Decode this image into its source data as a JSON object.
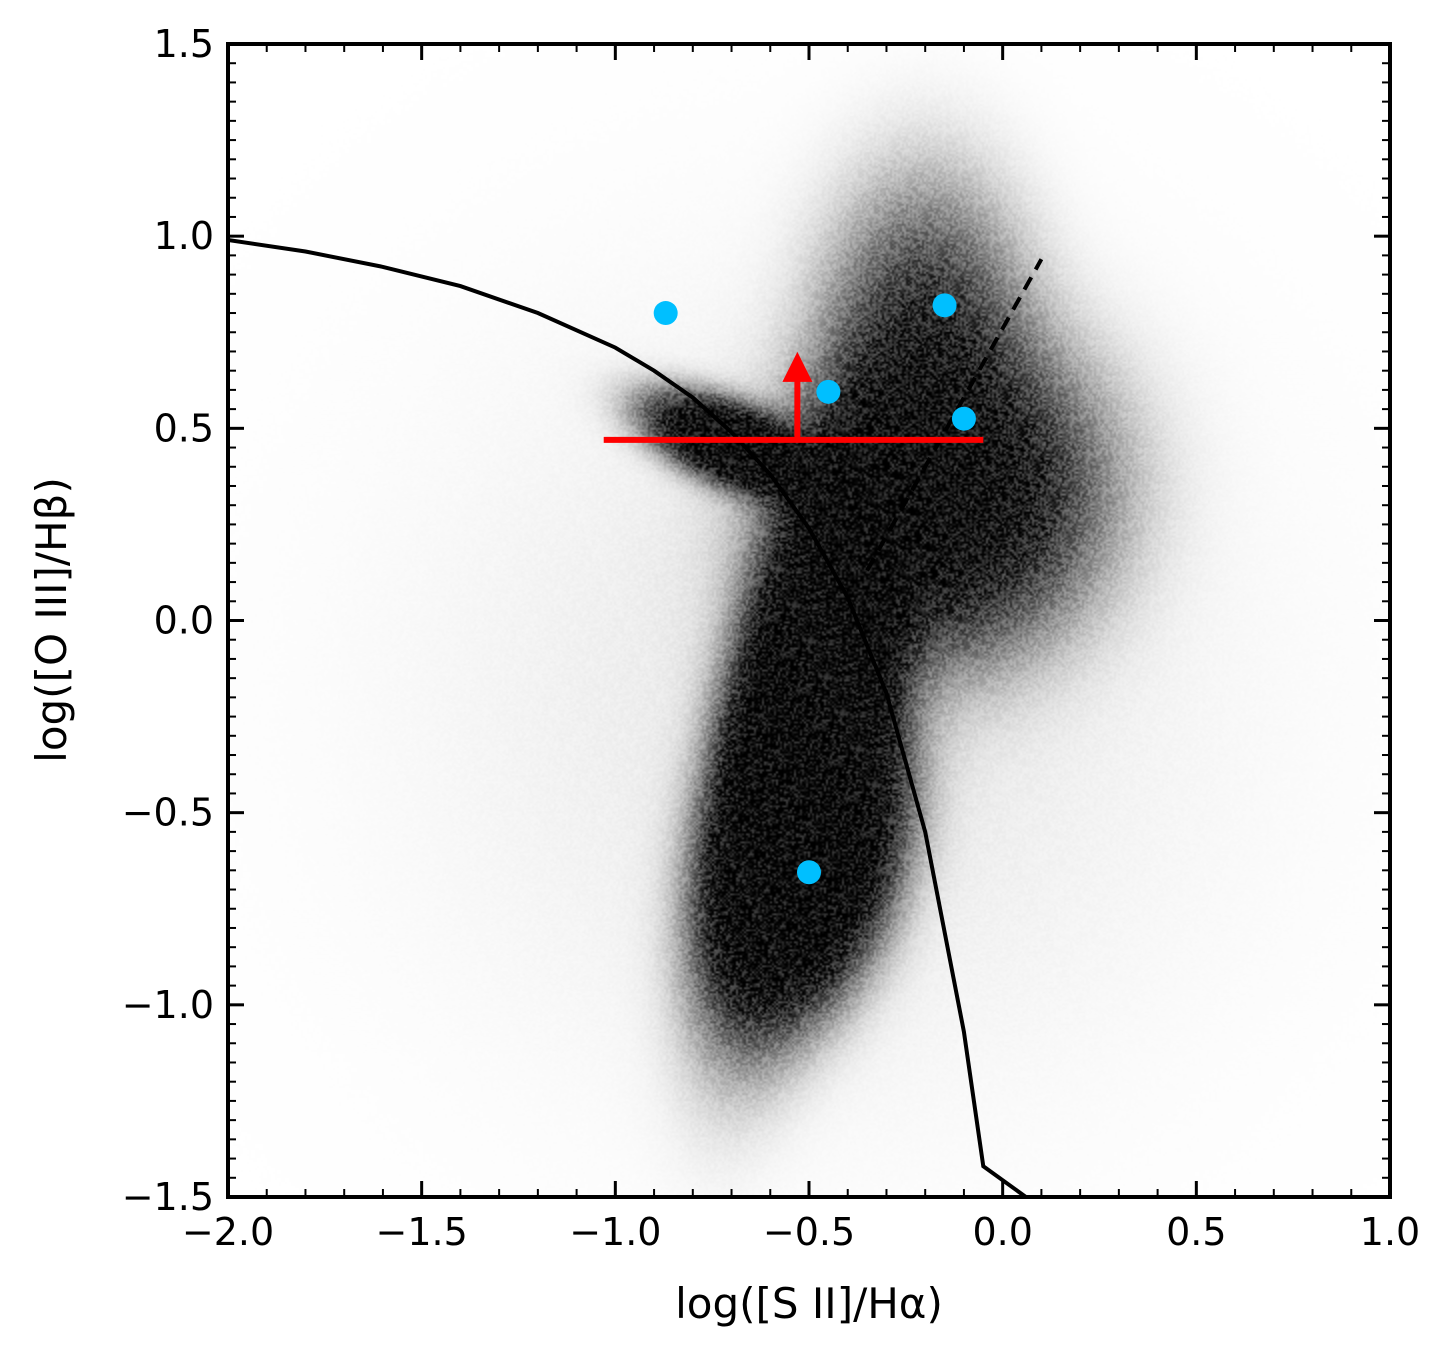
{
  "chart_data": {
    "type": "scatter",
    "xlabel": "log([S II]/Hα)",
    "ylabel": "log([O III]/Hβ)",
    "xlim": [
      -2.0,
      1.0
    ],
    "ylim": [
      -1.5,
      1.5
    ],
    "x_ticks": [
      "−2.0",
      "−1.5",
      "−1.0",
      "−0.5",
      "0.0",
      "0.5",
      "1.0"
    ],
    "y_ticks": [
      "−1.5",
      "−1.0",
      "−0.5",
      "0.0",
      "0.5",
      "1.0",
      "1.5"
    ],
    "grid": false,
    "legend": "none",
    "background_density": {
      "description_free": true,
      "color": "#000000",
      "components": [
        {
          "cx": -0.5,
          "cy": -0.25,
          "sx": 0.12,
          "sy": 0.35,
          "rho": 0.55,
          "weight": 0.45
        },
        {
          "cx": -0.5,
          "cy": -0.6,
          "sx": 0.12,
          "sy": 0.2,
          "rho": 0.3,
          "weight": 0.2
        },
        {
          "cx": -0.15,
          "cy": 0.3,
          "sx": 0.22,
          "sy": 0.22,
          "rho": 0.1,
          "weight": 0.18
        },
        {
          "cx": -0.2,
          "cy": 0.7,
          "sx": 0.15,
          "sy": 0.25,
          "rho": 0.0,
          "weight": 0.07
        },
        {
          "cx": -0.68,
          "cy": 0.45,
          "sx": 0.12,
          "sy": 0.07,
          "rho": -0.6,
          "weight": 0.05
        },
        {
          "cx": -0.45,
          "cy": -0.2,
          "sx": 0.7,
          "sy": 0.7,
          "rho": 0.0,
          "weight": 0.05
        }
      ]
    },
    "series": [
      {
        "kind": "curve",
        "style": "solid",
        "color": "#000000",
        "points": [
          [
            -2.0,
            0.99
          ],
          [
            -1.8,
            0.96
          ],
          [
            -1.6,
            0.92
          ],
          [
            -1.4,
            0.87
          ],
          [
            -1.2,
            0.8
          ],
          [
            -1.0,
            0.71
          ],
          [
            -0.9,
            0.65
          ],
          [
            -0.8,
            0.58
          ],
          [
            -0.7,
            0.49
          ],
          [
            -0.6,
            0.38
          ],
          [
            -0.5,
            0.24
          ],
          [
            -0.4,
            0.06
          ],
          [
            -0.3,
            -0.19
          ],
          [
            -0.2,
            -0.55
          ],
          [
            -0.1,
            -1.07
          ],
          [
            -0.05,
            -1.42
          ],
          [
            0.06,
            -1.5
          ]
        ]
      },
      {
        "kind": "line",
        "style": "dashed",
        "color": "#000000",
        "points": [
          [
            -0.35,
            0.13
          ],
          [
            0.1,
            0.94
          ]
        ]
      },
      {
        "kind": "points",
        "color": "#00bfff",
        "points": [
          [
            -0.87,
            0.8
          ],
          [
            -0.45,
            0.595
          ],
          [
            -0.15,
            0.82
          ],
          [
            -0.1,
            0.525
          ],
          [
            -0.5,
            -0.655
          ]
        ]
      },
      {
        "kind": "limit",
        "color": "#ff0000",
        "x_range": [
          -1.03,
          -0.05
        ],
        "y": 0.47,
        "arrow_x": -0.53,
        "arrow_to_y": 0.66
      }
    ]
  }
}
